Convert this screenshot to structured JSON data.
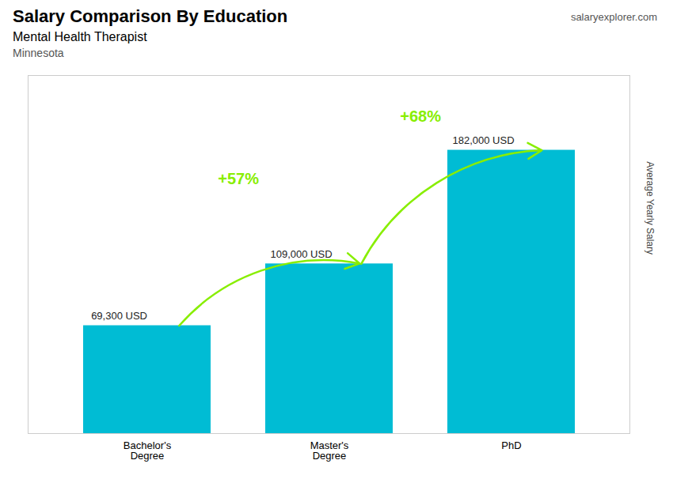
{
  "chart_data": {
    "type": "bar",
    "title": "Salary Comparison By Education",
    "subtitle": "Mental Health Therapist",
    "location": "Minnesota",
    "source": "salaryexplorer.com",
    "ylabel": "Average Yearly Salary",
    "categories": [
      "Bachelor's\nDegree",
      "Master's\nDegree",
      "PhD"
    ],
    "values": [
      69300,
      109000,
      182000
    ],
    "value_labels": [
      "69,300 USD",
      "109,000 USD",
      "182,000 USD"
    ],
    "data_labels": true,
    "color": "#00bcd4",
    "ylim": [
      0,
      230000
    ],
    "tick_labels": "x",
    "annotations": [
      {
        "text": "+57%",
        "from": "Bachelor's\nDegree",
        "to": "Master's\nDegree",
        "color": "#88ee00"
      },
      {
        "text": "+68%",
        "from": "Master's\nDegree",
        "to": "PhD",
        "color": "#88ee00"
      }
    ]
  }
}
